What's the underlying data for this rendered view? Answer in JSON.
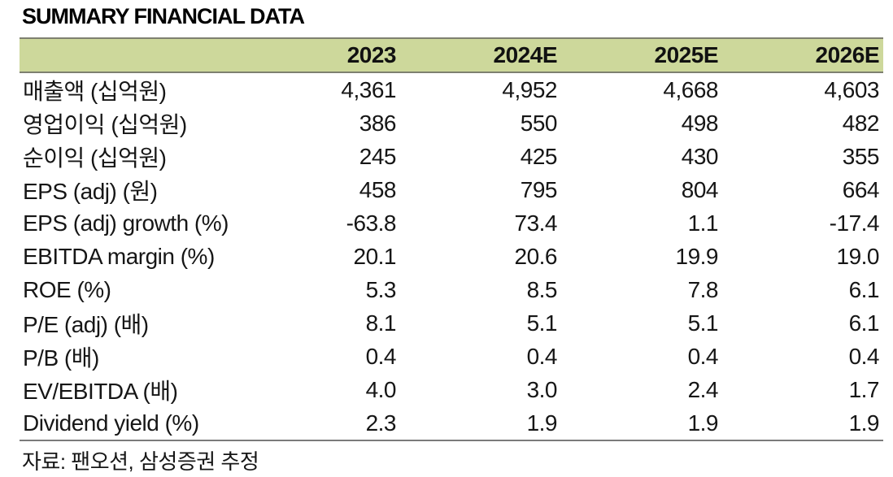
{
  "title": "SUMMARY FINANCIAL DATA",
  "table": {
    "columns": [
      "",
      "2023",
      "2024E",
      "2025E",
      "2026E"
    ],
    "rows": [
      {
        "label": "매출액 (십억원)",
        "values": [
          "4,361",
          "4,952",
          "4,668",
          "4,603"
        ]
      },
      {
        "label": "영업이익 (십억원)",
        "values": [
          "386",
          "550",
          "498",
          "482"
        ]
      },
      {
        "label": "순이익 (십억원)",
        "values": [
          "245",
          "425",
          "430",
          "355"
        ]
      },
      {
        "label": "EPS (adj) (원)",
        "values": [
          "458",
          "795",
          "804",
          "664"
        ]
      },
      {
        "label": "EPS (adj) growth (%)",
        "values": [
          "-63.8",
          "73.4",
          "1.1",
          "-17.4"
        ]
      },
      {
        "label": "EBITDA margin (%)",
        "values": [
          "20.1",
          "20.6",
          "19.9",
          "19.0"
        ]
      },
      {
        "label": "ROE (%)",
        "values": [
          "5.3",
          "8.5",
          "7.8",
          "6.1"
        ]
      },
      {
        "label": "P/E (adj) (배)",
        "values": [
          "8.1",
          "5.1",
          "5.1",
          "6.1"
        ]
      },
      {
        "label": "P/B (배)",
        "values": [
          "0.4",
          "0.4",
          "0.4",
          "0.4"
        ]
      },
      {
        "label": "EV/EBITDA (배)",
        "values": [
          "4.0",
          "3.0",
          "2.4",
          "1.7"
        ]
      },
      {
        "label": "Dividend yield (%)",
        "values": [
          "2.3",
          "1.9",
          "1.9",
          "1.9"
        ]
      }
    ]
  },
  "footer": {
    "source": "자료: 팬오션, 삼성증권 추정"
  },
  "colors": {
    "header_bg": "#cdd89b",
    "header_border": "#7e8070",
    "table_bottom_border": "#7b7b7b",
    "text": "#161616"
  }
}
